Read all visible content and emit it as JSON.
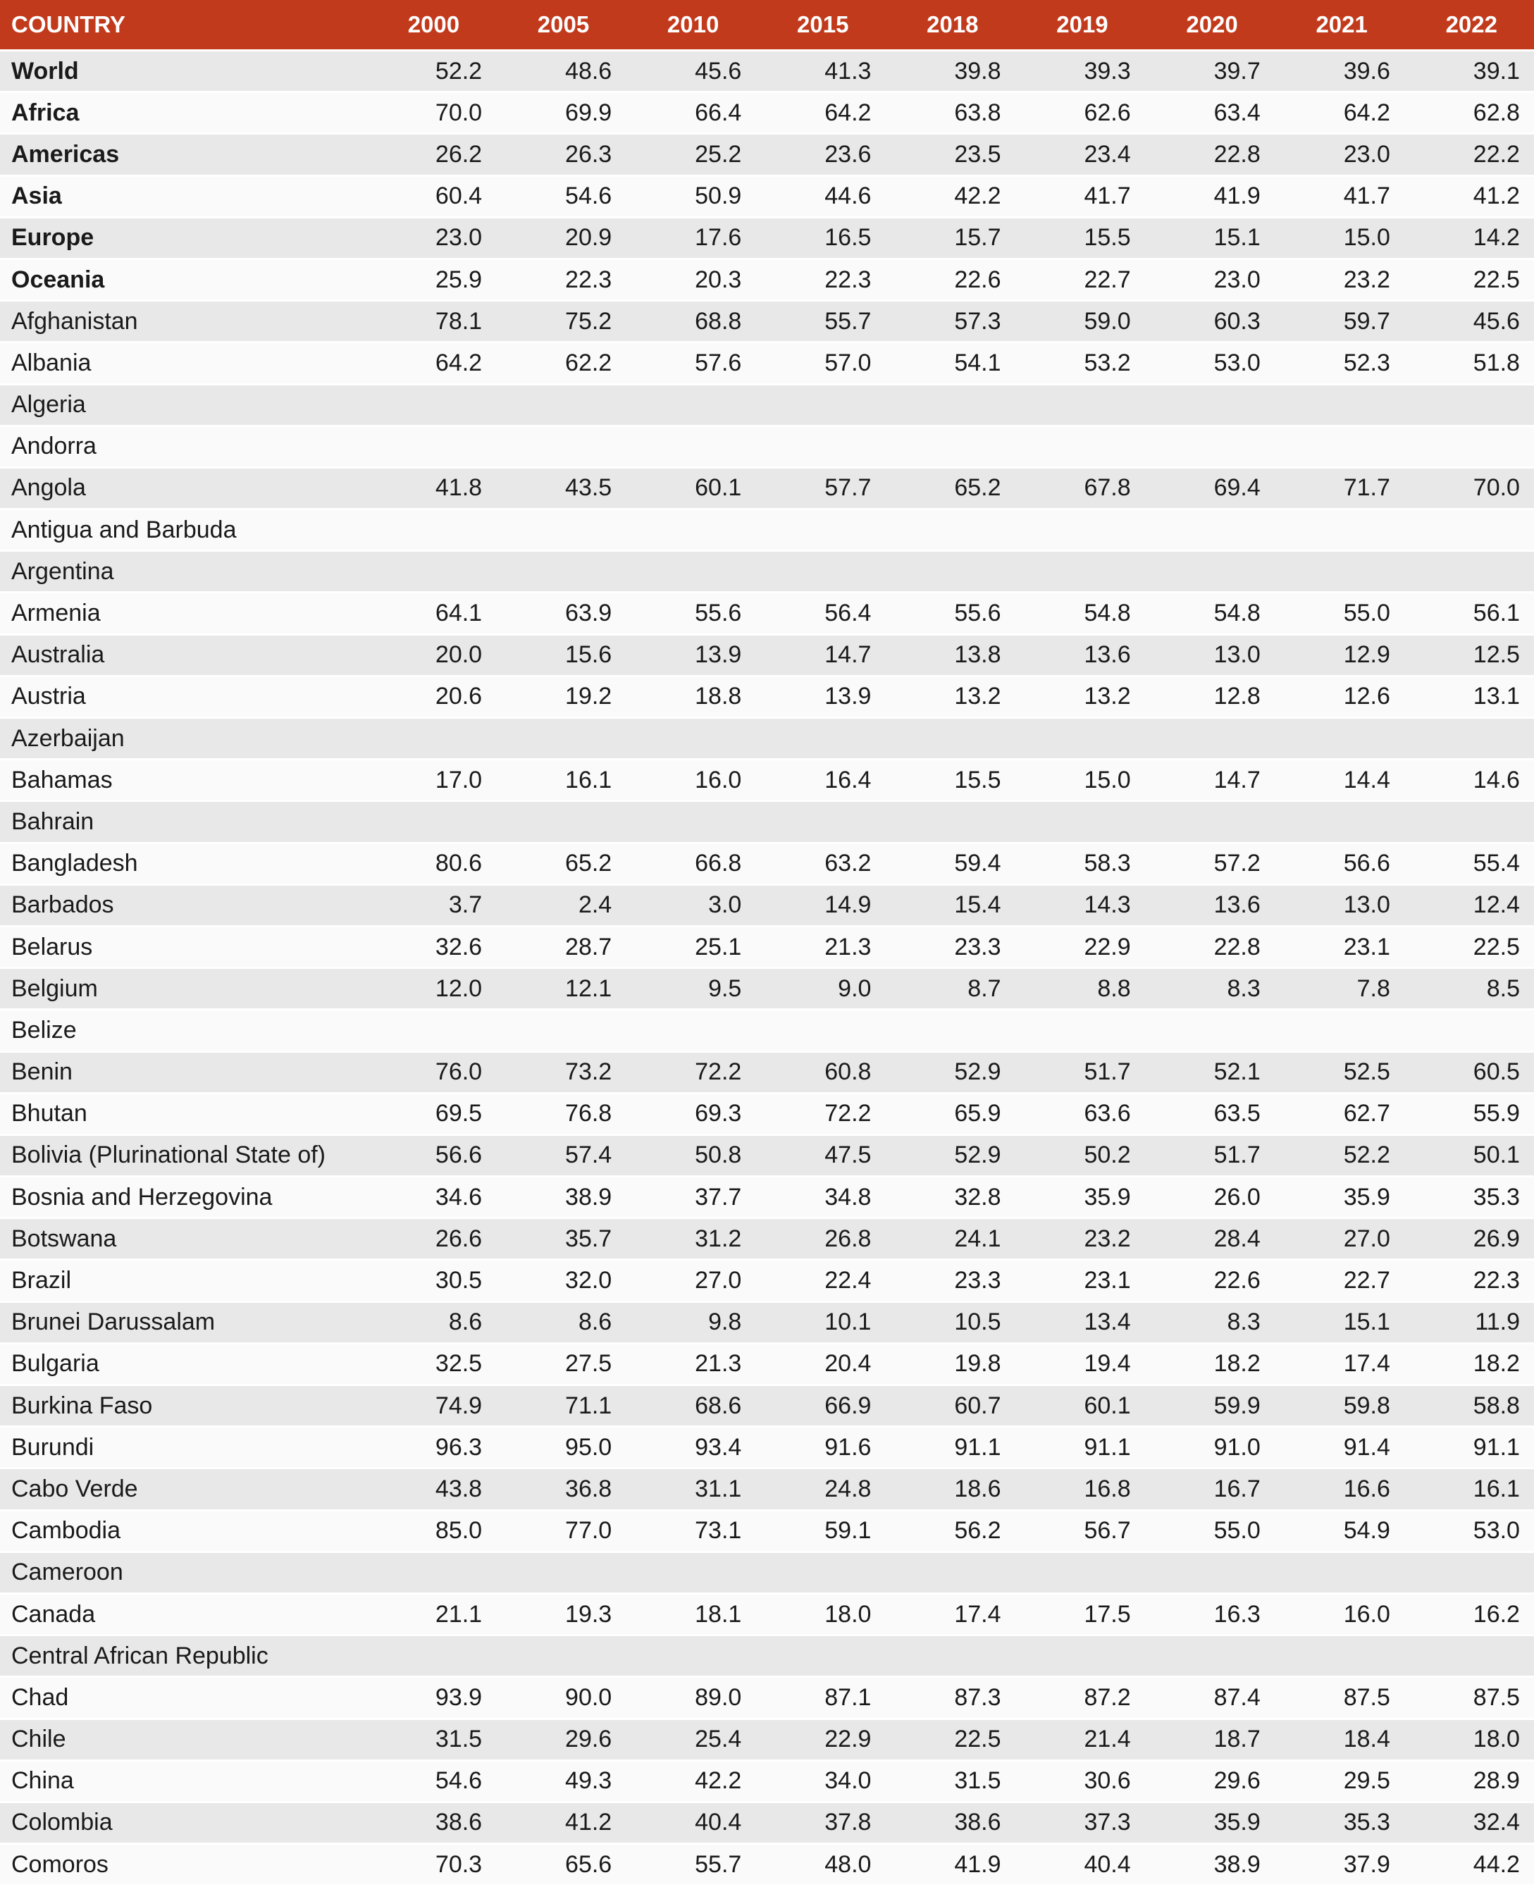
{
  "chart_data": {
    "type": "table",
    "columns": [
      "COUNTRY",
      "2000",
      "2005",
      "2010",
      "2015",
      "2018",
      "2019",
      "2020",
      "2021",
      "2022"
    ],
    "rows": [
      {
        "name": "World",
        "bold": true,
        "values": [
          "52.2",
          "48.6",
          "45.6",
          "41.3",
          "39.8",
          "39.3",
          "39.7",
          "39.6",
          "39.1"
        ]
      },
      {
        "name": "Africa",
        "bold": true,
        "values": [
          "70.0",
          "69.9",
          "66.4",
          "64.2",
          "63.8",
          "62.6",
          "63.4",
          "64.2",
          "62.8"
        ]
      },
      {
        "name": "Americas",
        "bold": true,
        "values": [
          "26.2",
          "26.3",
          "25.2",
          "23.6",
          "23.5",
          "23.4",
          "22.8",
          "23.0",
          "22.2"
        ]
      },
      {
        "name": "Asia",
        "bold": true,
        "values": [
          "60.4",
          "54.6",
          "50.9",
          "44.6",
          "42.2",
          "41.7",
          "41.9",
          "41.7",
          "41.2"
        ]
      },
      {
        "name": "Europe",
        "bold": true,
        "values": [
          "23.0",
          "20.9",
          "17.6",
          "16.5",
          "15.7",
          "15.5",
          "15.1",
          "15.0",
          "14.2"
        ]
      },
      {
        "name": "Oceania",
        "bold": true,
        "values": [
          "25.9",
          "22.3",
          "20.3",
          "22.3",
          "22.6",
          "22.7",
          "23.0",
          "23.2",
          "22.5"
        ]
      },
      {
        "name": "Afghanistan",
        "bold": false,
        "values": [
          "78.1",
          "75.2",
          "68.8",
          "55.7",
          "57.3",
          "59.0",
          "60.3",
          "59.7",
          "45.6"
        ]
      },
      {
        "name": "Albania",
        "bold": false,
        "values": [
          "64.2",
          "62.2",
          "57.6",
          "57.0",
          "54.1",
          "53.2",
          "53.0",
          "52.3",
          "51.8"
        ]
      },
      {
        "name": "Algeria",
        "bold": false,
        "values": [
          "",
          "",
          "",
          "",
          "",
          "",
          "",
          "",
          ""
        ]
      },
      {
        "name": "Andorra",
        "bold": false,
        "values": [
          "",
          "",
          "",
          "",
          "",
          "",
          "",
          "",
          ""
        ]
      },
      {
        "name": "Angola",
        "bold": false,
        "values": [
          "41.8",
          "43.5",
          "60.1",
          "57.7",
          "65.2",
          "67.8",
          "69.4",
          "71.7",
          "70.0"
        ]
      },
      {
        "name": "Antigua and Barbuda",
        "bold": false,
        "values": [
          "",
          "",
          "",
          "",
          "",
          "",
          "",
          "",
          ""
        ]
      },
      {
        "name": "Argentina",
        "bold": false,
        "values": [
          "",
          "",
          "",
          "",
          "",
          "",
          "",
          "",
          ""
        ]
      },
      {
        "name": "Armenia",
        "bold": false,
        "values": [
          "64.1",
          "63.9",
          "55.6",
          "56.4",
          "55.6",
          "54.8",
          "54.8",
          "55.0",
          "56.1"
        ]
      },
      {
        "name": "Australia",
        "bold": false,
        "values": [
          "20.0",
          "15.6",
          "13.9",
          "14.7",
          "13.8",
          "13.6",
          "13.0",
          "12.9",
          "12.5"
        ]
      },
      {
        "name": "Austria",
        "bold": false,
        "values": [
          "20.6",
          "19.2",
          "18.8",
          "13.9",
          "13.2",
          "13.2",
          "12.8",
          "12.6",
          "13.1"
        ]
      },
      {
        "name": "Azerbaijan",
        "bold": false,
        "values": [
          "",
          "",
          "",
          "",
          "",
          "",
          "",
          "",
          ""
        ]
      },
      {
        "name": "Bahamas",
        "bold": false,
        "values": [
          "17.0",
          "16.1",
          "16.0",
          "16.4",
          "15.5",
          "15.0",
          "14.7",
          "14.4",
          "14.6"
        ]
      },
      {
        "name": "Bahrain",
        "bold": false,
        "values": [
          "",
          "",
          "",
          "",
          "",
          "",
          "",
          "",
          ""
        ]
      },
      {
        "name": "Bangladesh",
        "bold": false,
        "values": [
          "80.6",
          "65.2",
          "66.8",
          "63.2",
          "59.4",
          "58.3",
          "57.2",
          "56.6",
          "55.4"
        ]
      },
      {
        "name": "Barbados",
        "bold": false,
        "values": [
          "3.7",
          "2.4",
          "3.0",
          "14.9",
          "15.4",
          "14.3",
          "13.6",
          "13.0",
          "12.4"
        ]
      },
      {
        "name": "Belarus",
        "bold": false,
        "values": [
          "32.6",
          "28.7",
          "25.1",
          "21.3",
          "23.3",
          "22.9",
          "22.8",
          "23.1",
          "22.5"
        ]
      },
      {
        "name": "Belgium",
        "bold": false,
        "values": [
          "12.0",
          "12.1",
          "9.5",
          "9.0",
          "8.7",
          "8.8",
          "8.3",
          "7.8",
          "8.5"
        ]
      },
      {
        "name": "Belize",
        "bold": false,
        "values": [
          "",
          "",
          "",
          "",
          "",
          "",
          "",
          "",
          ""
        ]
      },
      {
        "name": "Benin",
        "bold": false,
        "values": [
          "76.0",
          "73.2",
          "72.2",
          "60.8",
          "52.9",
          "51.7",
          "52.1",
          "52.5",
          "60.5"
        ]
      },
      {
        "name": "Bhutan",
        "bold": false,
        "values": [
          "69.5",
          "76.8",
          "69.3",
          "72.2",
          "65.9",
          "63.6",
          "63.5",
          "62.7",
          "55.9"
        ]
      },
      {
        "name": "Bolivia (Plurinational State of)",
        "bold": false,
        "values": [
          "56.6",
          "57.4",
          "50.8",
          "47.5",
          "52.9",
          "50.2",
          "51.7",
          "52.2",
          "50.1"
        ]
      },
      {
        "name": "Bosnia and Herzegovina",
        "bold": false,
        "values": [
          "34.6",
          "38.9",
          "37.7",
          "34.8",
          "32.8",
          "35.9",
          "26.0",
          "35.9",
          "35.3"
        ]
      },
      {
        "name": "Botswana",
        "bold": false,
        "values": [
          "26.6",
          "35.7",
          "31.2",
          "26.8",
          "24.1",
          "23.2",
          "28.4",
          "27.0",
          "26.9"
        ]
      },
      {
        "name": "Brazil",
        "bold": false,
        "values": [
          "30.5",
          "32.0",
          "27.0",
          "22.4",
          "23.3",
          "23.1",
          "22.6",
          "22.7",
          "22.3"
        ]
      },
      {
        "name": "Brunei Darussalam",
        "bold": false,
        "values": [
          "8.6",
          "8.6",
          "9.8",
          "10.1",
          "10.5",
          "13.4",
          "8.3",
          "15.1",
          "11.9"
        ]
      },
      {
        "name": "Bulgaria",
        "bold": false,
        "values": [
          "32.5",
          "27.5",
          "21.3",
          "20.4",
          "19.8",
          "19.4",
          "18.2",
          "17.4",
          "18.2"
        ]
      },
      {
        "name": "Burkina Faso",
        "bold": false,
        "values": [
          "74.9",
          "71.1",
          "68.6",
          "66.9",
          "60.7",
          "60.1",
          "59.9",
          "59.8",
          "58.8"
        ]
      },
      {
        "name": "Burundi",
        "bold": false,
        "values": [
          "96.3",
          "95.0",
          "93.4",
          "91.6",
          "91.1",
          "91.1",
          "91.0",
          "91.4",
          "91.1"
        ]
      },
      {
        "name": "Cabo Verde",
        "bold": false,
        "values": [
          "43.8",
          "36.8",
          "31.1",
          "24.8",
          "18.6",
          "16.8",
          "16.7",
          "16.6",
          "16.1"
        ]
      },
      {
        "name": "Cambodia",
        "bold": false,
        "values": [
          "85.0",
          "77.0",
          "73.1",
          "59.1",
          "56.2",
          "56.7",
          "55.0",
          "54.9",
          "53.0"
        ]
      },
      {
        "name": "Cameroon",
        "bold": false,
        "values": [
          "",
          "",
          "",
          "",
          "",
          "",
          "",
          "",
          ""
        ]
      },
      {
        "name": "Canada",
        "bold": false,
        "values": [
          "21.1",
          "19.3",
          "18.1",
          "18.0",
          "17.4",
          "17.5",
          "16.3",
          "16.0",
          "16.2"
        ]
      },
      {
        "name": "Central African Republic",
        "bold": false,
        "values": [
          "",
          "",
          "",
          "",
          "",
          "",
          "",
          "",
          ""
        ]
      },
      {
        "name": "Chad",
        "bold": false,
        "values": [
          "93.9",
          "90.0",
          "89.0",
          "87.1",
          "87.3",
          "87.2",
          "87.4",
          "87.5",
          "87.5"
        ]
      },
      {
        "name": "Chile",
        "bold": false,
        "values": [
          "31.5",
          "29.6",
          "25.4",
          "22.9",
          "22.5",
          "21.4",
          "18.7",
          "18.4",
          "18.0"
        ]
      },
      {
        "name": "China",
        "bold": false,
        "values": [
          "54.6",
          "49.3",
          "42.2",
          "34.0",
          "31.5",
          "30.6",
          "29.6",
          "29.5",
          "28.9"
        ]
      },
      {
        "name": "Colombia",
        "bold": false,
        "values": [
          "38.6",
          "41.2",
          "40.4",
          "37.8",
          "38.6",
          "37.3",
          "35.9",
          "35.3",
          "32.4"
        ]
      },
      {
        "name": "Comoros",
        "bold": false,
        "values": [
          "70.3",
          "65.6",
          "55.7",
          "48.0",
          "41.9",
          "40.4",
          "38.9",
          "37.9",
          "44.2"
        ]
      }
    ]
  },
  "style": {
    "header_bg": "#C23A1C",
    "header_text": "#FFFFFF",
    "row_odd_bg": "#E8E8E8",
    "row_even_bg": "#FAFAFA",
    "separator": "#FFFFFF",
    "body_text": "#1A1A1A"
  }
}
